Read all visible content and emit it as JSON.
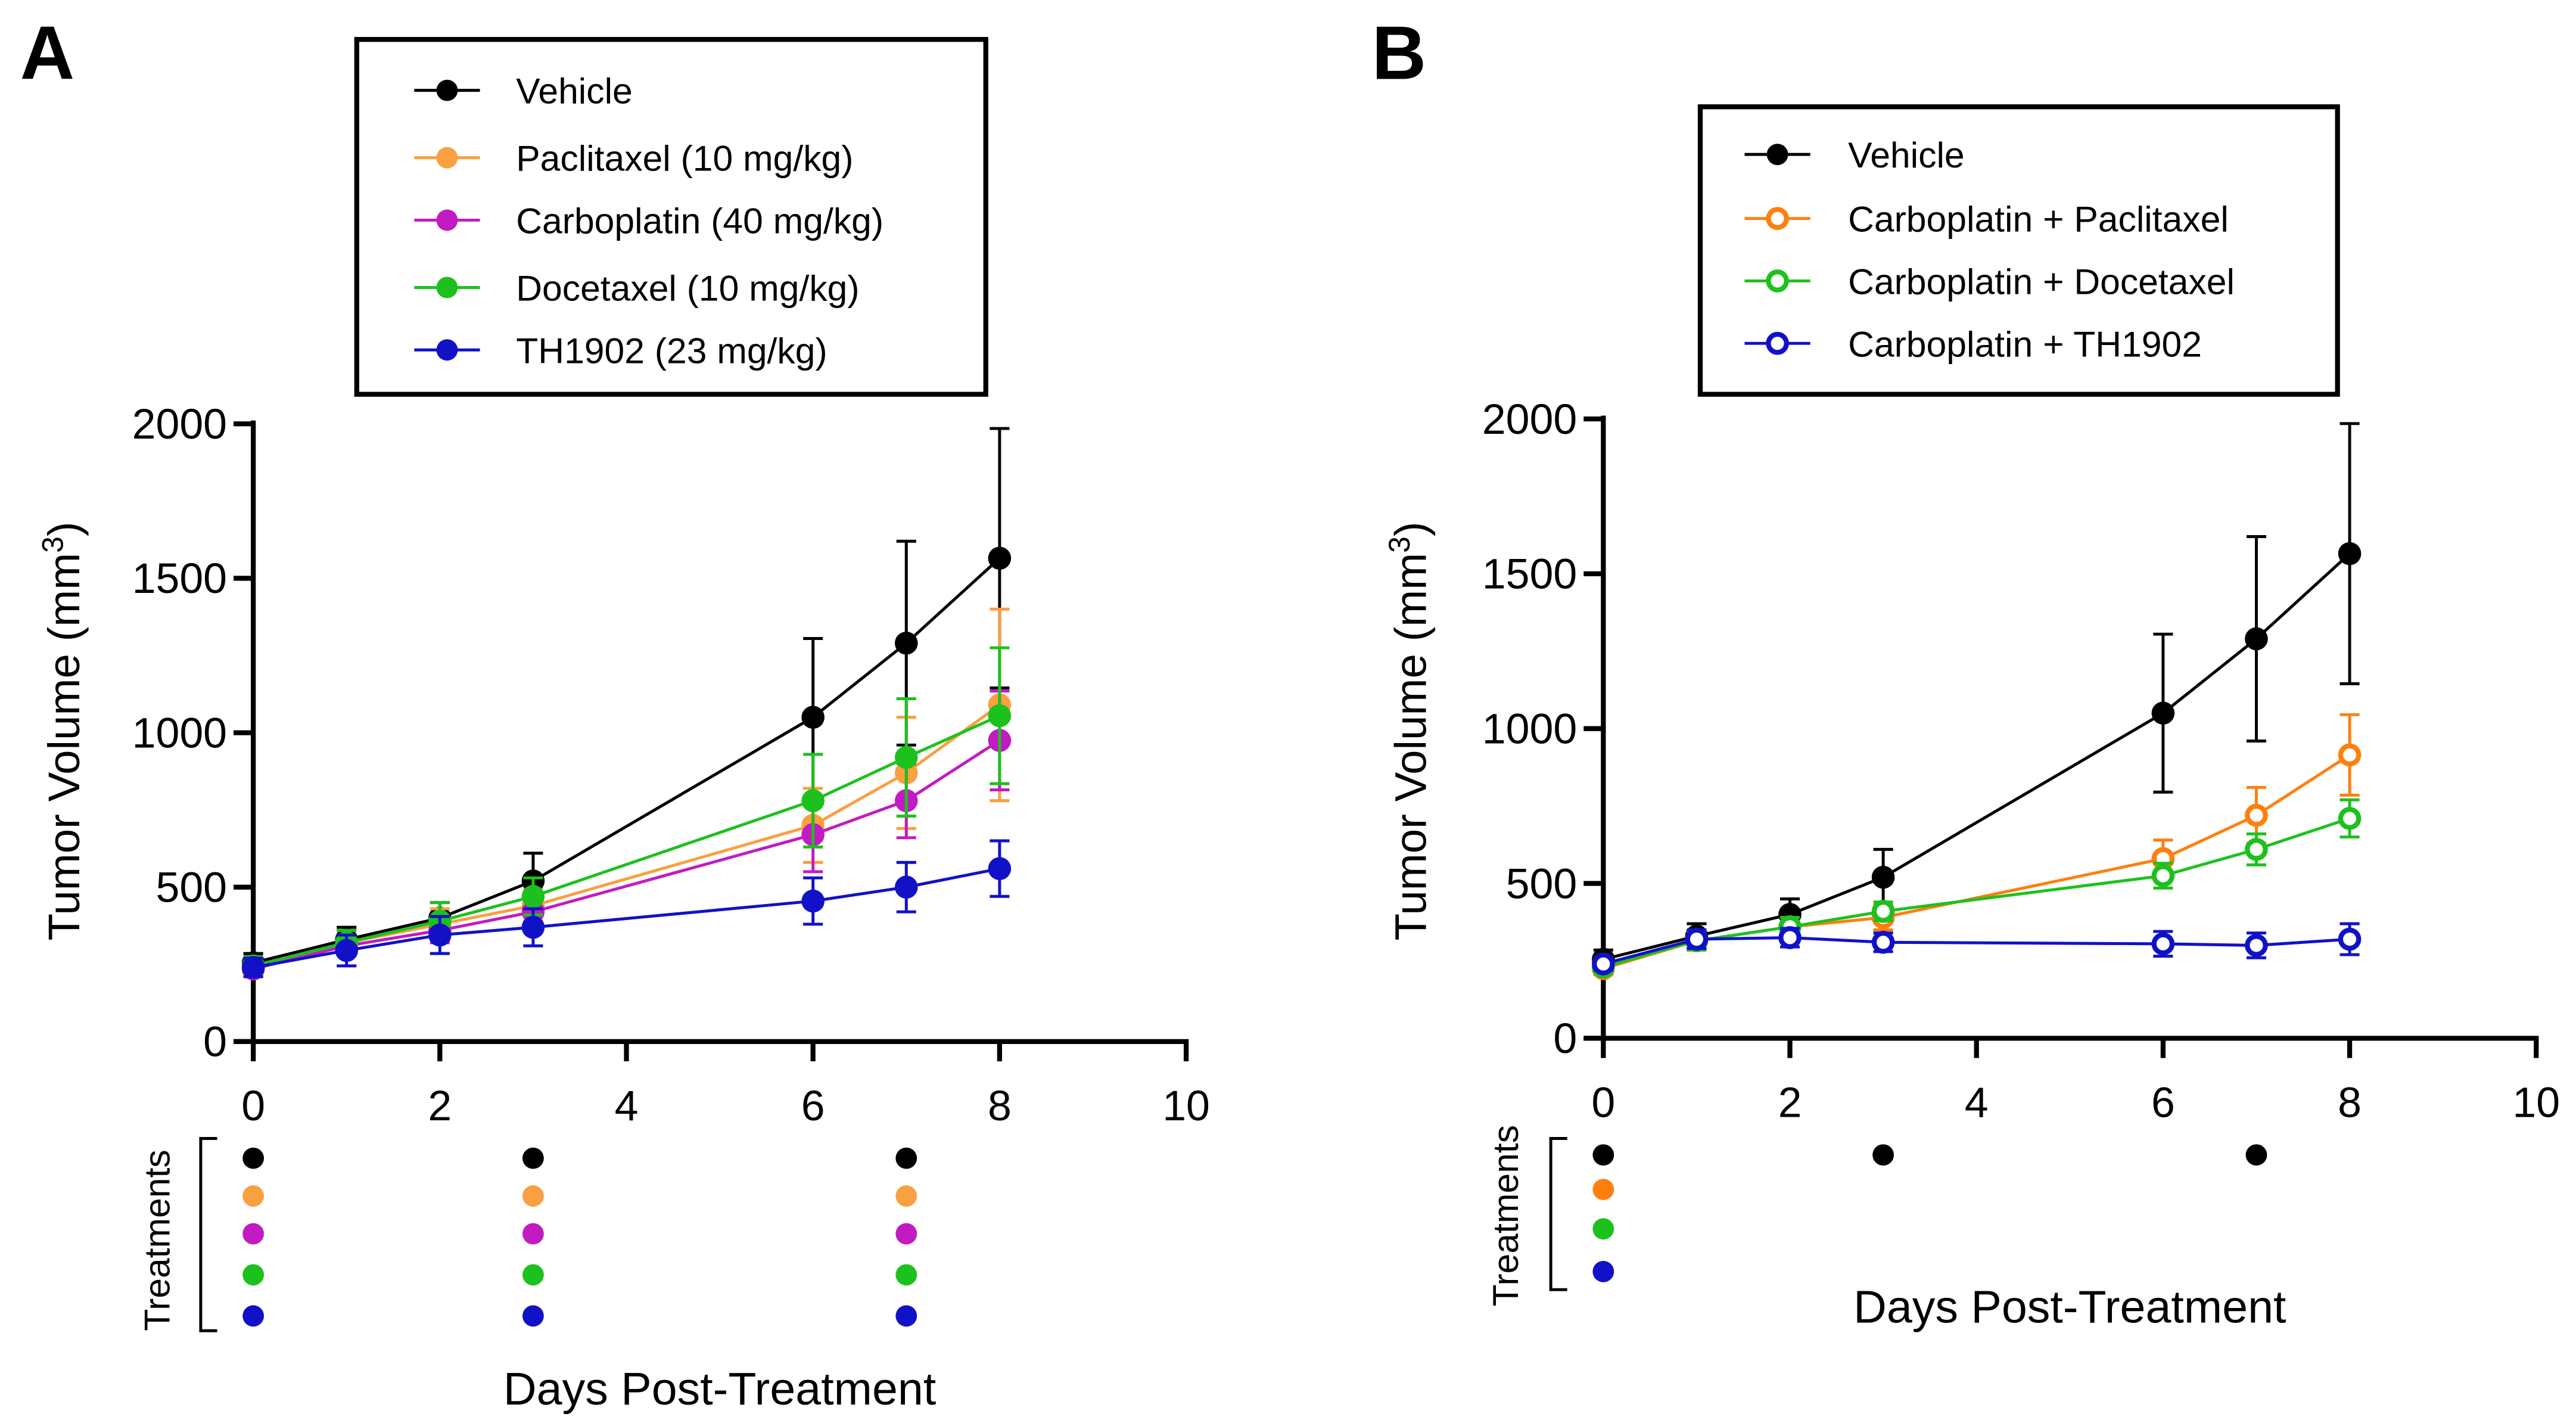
{
  "chart_data": [
    {
      "type": "line",
      "panel_label": "A",
      "xlabel": "Days Post-Treatment",
      "ylabel": "Tumor Volume (mm",
      "ylabel_sup": "3",
      "ylabel_close": ")",
      "xlim": [
        0,
        10
      ],
      "ylim": [
        0,
        2000
      ],
      "xticks": [
        0,
        2,
        4,
        6,
        8,
        10
      ],
      "yticks": [
        0,
        500,
        1000,
        1500,
        2000
      ],
      "legend_position": "top-center",
      "x": [
        0,
        1,
        2,
        3,
        6,
        7,
        8
      ],
      "series": [
        {
          "name": "Vehicle",
          "color": "#000000",
          "marker": "filled",
          "values": [
            255,
            330,
            400,
            520,
            1050,
            1290,
            1565
          ],
          "errors": [
            30,
            40,
            50,
            90,
            255,
            330,
            420
          ]
        },
        {
          "name": "Paclitaxel (10 mg/kg)",
          "color": "#F9A040",
          "marker": "filled",
          "values": [
            240,
            320,
            380,
            440,
            700,
            870,
            1090
          ],
          "errors": [
            30,
            40,
            50,
            50,
            120,
            180,
            310
          ]
        },
        {
          "name": "Carboplatin (40 mg/kg)",
          "color": "#C21BC2",
          "marker": "filled",
          "values": [
            235,
            310,
            360,
            420,
            670,
            780,
            975
          ],
          "errors": [
            25,
            30,
            40,
            40,
            120,
            120,
            160
          ]
        },
        {
          "name": "Docetaxel (10 mg/kg)",
          "color": "#1DC11D",
          "marker": "filled",
          "values": [
            245,
            320,
            390,
            470,
            780,
            920,
            1055
          ],
          "errors": [
            30,
            40,
            60,
            60,
            150,
            190,
            220
          ]
        },
        {
          "name": "TH1902 (23 mg/kg)",
          "color": "#1111C8",
          "marker": "filled",
          "values": [
            240,
            295,
            345,
            370,
            455,
            500,
            560
          ],
          "errors": [
            30,
            50,
            60,
            60,
            75,
            80,
            90
          ]
        }
      ],
      "treatments_label": "Treatments",
      "treatment_days": [
        [
          0,
          3,
          7
        ],
        [
          0,
          3,
          7
        ],
        [
          0,
          3,
          7
        ],
        [
          0,
          3,
          7
        ],
        [
          0,
          3,
          7
        ]
      ]
    },
    {
      "type": "line",
      "panel_label": "B",
      "xlabel": "Days Post-Treatment",
      "ylabel": "Tumor Volume (mm",
      "ylabel_sup": "3",
      "ylabel_close": ")",
      "xlim": [
        0,
        10
      ],
      "ylim": [
        0,
        2000
      ],
      "xticks": [
        0,
        2,
        4,
        6,
        8,
        10
      ],
      "yticks": [
        0,
        500,
        1000,
        1500,
        2000
      ],
      "legend_position": "top-center",
      "x": [
        0,
        1,
        2,
        3,
        6,
        7,
        8
      ],
      "series": [
        {
          "name": "Vehicle",
          "color": "#000000",
          "marker": "filled",
          "values": [
            255,
            330,
            400,
            520,
            1050,
            1290,
            1565
          ],
          "errors": [
            30,
            40,
            50,
            90,
            255,
            330,
            420
          ]
        },
        {
          "name": "Carboplatin + Paclitaxel",
          "color": "#FF7F0E",
          "marker": "open",
          "values": [
            225,
            315,
            360,
            390,
            580,
            720,
            915
          ],
          "errors": [
            20,
            30,
            30,
            40,
            60,
            90,
            130
          ]
        },
        {
          "name": "Carboplatin + Docetaxel",
          "color": "#1DC11D",
          "marker": "open",
          "values": [
            230,
            315,
            360,
            410,
            525,
            610,
            710
          ],
          "errors": [
            20,
            30,
            30,
            30,
            40,
            50,
            60
          ]
        },
        {
          "name": "Carboplatin + TH1902",
          "color": "#1111C8",
          "marker": "open",
          "values": [
            240,
            320,
            325,
            310,
            305,
            300,
            320
          ],
          "errors": [
            20,
            30,
            30,
            30,
            40,
            40,
            50
          ]
        }
      ],
      "treatments_label": "Treatments",
      "treatment_days": [
        [
          0,
          3,
          7
        ],
        [
          0
        ],
        [
          0
        ],
        [
          0
        ]
      ]
    }
  ]
}
